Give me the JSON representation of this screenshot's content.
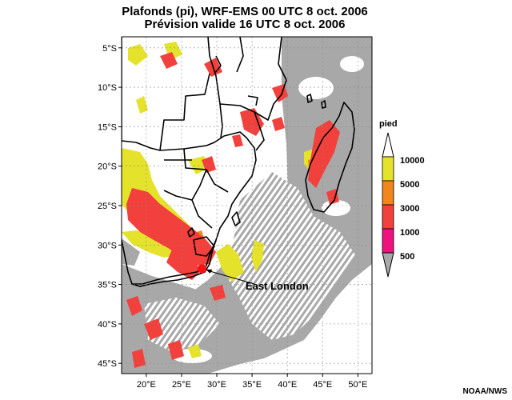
{
  "title": {
    "line1": "Plafonds (pi), WRF-EMS 00 UTC 8 oct. 2006",
    "line2": "Prévision valide 16 UTC 8 oct. 2006"
  },
  "axes": {
    "lat_labels": [
      "5°S",
      "10°S",
      "15°S",
      "20°S",
      "25°S",
      "30°S",
      "35°S",
      "40°S",
      "45°S"
    ],
    "lon_labels": [
      "20°E",
      "25°E",
      "30°E",
      "35°E",
      "40°E",
      "45°E",
      "50°E"
    ],
    "lat_values": [
      -5,
      -10,
      -15,
      -20,
      -25,
      -30,
      -35,
      -40,
      -45
    ],
    "lon_values": [
      20,
      25,
      30,
      35,
      40,
      45,
      50
    ]
  },
  "extent": {
    "lon_min": 16.5,
    "lon_max": 52.0,
    "lat_min": -46.3,
    "lat_max": -3.6
  },
  "legend": {
    "unit": "pied",
    "levels": [
      {
        "label": "10000",
        "color": "#e5e22c"
      },
      {
        "label": "5000",
        "color": "#f2861e"
      },
      {
        "label": "3000",
        "color": "#f2403c"
      },
      {
        "label": "1000",
        "color": "#f0127c"
      },
      {
        "label": "500",
        "color": "#a8a8a8"
      }
    ],
    "top_color": "#ffffff"
  },
  "colors": {
    "low_cloud_gray": "#a8a8a8",
    "coast": "#000000",
    "marker": "#ff1010"
  },
  "station": {
    "name": "East London",
    "lon": 27.9,
    "lat": -33.0
  },
  "credit": "NOAA/NWS"
}
